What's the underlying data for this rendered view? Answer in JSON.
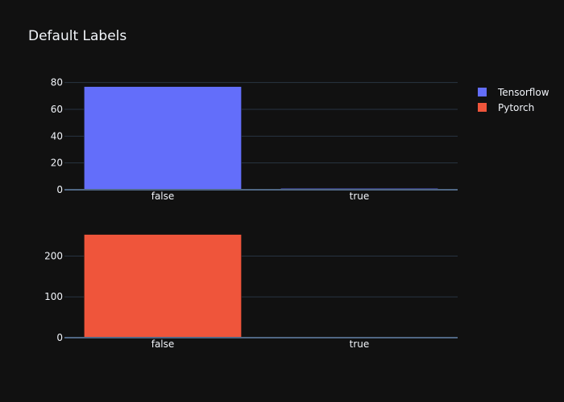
{
  "chart_data": {
    "type": "bar",
    "title": "Default Labels",
    "legend_position": "top-right",
    "theme_colors": {
      "background": "#111111",
      "grid": "#283442",
      "text": "#f2f5fa"
    },
    "subplots": [
      {
        "categories": [
          "false",
          "true"
        ],
        "series": [
          {
            "name": "Tensorflow",
            "color": "#636efa",
            "values": [
              77,
              1
            ]
          }
        ],
        "ylim": [
          0,
          81
        ],
        "yticks": [
          0,
          20,
          40,
          60,
          80
        ]
      },
      {
        "categories": [
          "false",
          "true"
        ],
        "series": [
          {
            "name": "Pytorch",
            "color": "#ef553b",
            "values": [
              253,
              2
            ]
          }
        ],
        "ylim": [
          0,
          266
        ],
        "yticks": [
          0,
          100,
          200
        ]
      }
    ],
    "legend": [
      {
        "name": "Tensorflow",
        "color": "#636efa"
      },
      {
        "name": "Pytorch",
        "color": "#ef553b"
      }
    ]
  }
}
